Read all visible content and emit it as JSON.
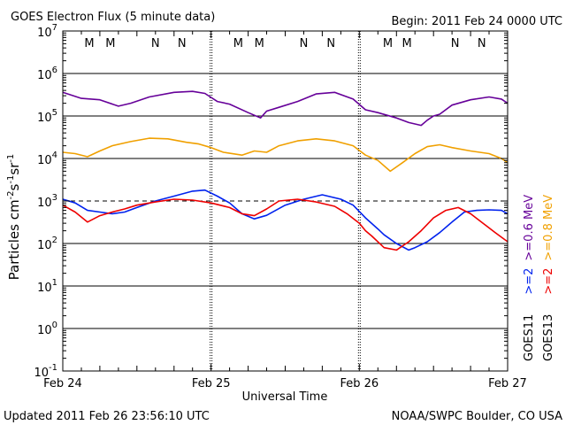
{
  "header": {
    "title": "GOES Electron Flux (5 minute data)",
    "begin": "Begin: 2011 Feb 24 0000 UTC"
  },
  "footer": {
    "updated": "Updated 2011 Feb 26 23:56:10 UTC",
    "credit": "NOAA/SWPC Boulder, CO USA"
  },
  "colors": {
    "purple": "#660099",
    "orange": "#f0a000",
    "blue": "#0022ee",
    "red": "#ee0000",
    "threshold": "#000000"
  },
  "right_labels": {
    "sat1": "GOES11",
    "sat1_ch1": ">=2",
    "sat1_ch2": ">=0.6 MeV",
    "sat2": "GOES13",
    "sat2_ch1": ">=2",
    "sat2_ch2": ">=0.8 MeV"
  },
  "chart_data": {
    "type": "line",
    "title": "GOES Electron Flux (5 minute data)",
    "xlabel": "Universal Time",
    "ylabel": "Particles cm-2s-1sr-1",
    "yscale": "log",
    "ylim": [
      0.1,
      10000000
    ],
    "xlim": [
      0,
      72
    ],
    "x_unit": "hours since 2011 Feb 24 0000 UTC",
    "x_ticks": [
      {
        "x": 0,
        "label": "Feb 24"
      },
      {
        "x": 24,
        "label": "Feb 25"
      },
      {
        "x": 48,
        "label": "Feb 26"
      },
      {
        "x": 72,
        "label": "Feb 27"
      }
    ],
    "y_ticks": [
      {
        "value": 0.1,
        "base": "10",
        "exp": "-1"
      },
      {
        "value": 1,
        "base": "10",
        "exp": "0"
      },
      {
        "value": 10,
        "base": "10",
        "exp": "1"
      },
      {
        "value": 100,
        "base": "10",
        "exp": "2"
      },
      {
        "value": 1000,
        "base": "10",
        "exp": "3"
      },
      {
        "value": 10000,
        "base": "10",
        "exp": "4"
      },
      {
        "value": 100000,
        "base": "10",
        "exp": "5"
      },
      {
        "value": 1000000,
        "base": "10",
        "exp": "6"
      },
      {
        "value": 10000000,
        "base": "10",
        "exp": "7"
      }
    ],
    "threshold": {
      "value": 1000,
      "style": "dashed"
    },
    "markers": [
      {
        "x": 4.3,
        "label": "M",
        "color": "red"
      },
      {
        "x": 7.7,
        "label": "M",
        "color": "blue"
      },
      {
        "x": 15.0,
        "label": "N",
        "color": "red"
      },
      {
        "x": 19.3,
        "label": "N",
        "color": "blue"
      },
      {
        "x": 28.4,
        "label": "M",
        "color": "red"
      },
      {
        "x": 31.8,
        "label": "M",
        "color": "blue"
      },
      {
        "x": 39.0,
        "label": "N",
        "color": "red"
      },
      {
        "x": 43.4,
        "label": "N",
        "color": "blue"
      },
      {
        "x": 52.6,
        "label": "M",
        "color": "red"
      },
      {
        "x": 55.7,
        "label": "M",
        "color": "blue"
      },
      {
        "x": 63.5,
        "label": "N",
        "color": "red"
      },
      {
        "x": 67.8,
        "label": "N",
        "color": "blue"
      }
    ],
    "series": [
      {
        "name": "GOES11 >=0.6 MeV",
        "color": "purple",
        "x": [
          0,
          3,
          6,
          9,
          11,
          14,
          18,
          21,
          23,
          25,
          27,
          30,
          32,
          33,
          35,
          38,
          41,
          44,
          47,
          49,
          51,
          54,
          56,
          58,
          59,
          60,
          61,
          63,
          66,
          69,
          71,
          72
        ],
        "values": [
          360000,
          260000,
          240000,
          170000,
          200000,
          280000,
          360000,
          380000,
          340000,
          220000,
          190000,
          120000,
          90000,
          130000,
          160000,
          220000,
          330000,
          360000,
          250000,
          140000,
          120000,
          90000,
          70000,
          60000,
          80000,
          100000,
          110000,
          180000,
          240000,
          280000,
          250000,
          200000
        ]
      },
      {
        "name": "GOES13 >=0.8 MeV",
        "color": "orange",
        "x": [
          0,
          2,
          4,
          6,
          8,
          11,
          14,
          17,
          20,
          22,
          24,
          26,
          29,
          31,
          33,
          35,
          38,
          41,
          44,
          47,
          49,
          51,
          53,
          55,
          57,
          59,
          61,
          63,
          66,
          69,
          71,
          72
        ],
        "values": [
          14000,
          13000,
          11000,
          15000,
          20000,
          25000,
          30000,
          29000,
          24000,
          22000,
          18000,
          14000,
          12000,
          15000,
          14000,
          20000,
          26000,
          29000,
          26000,
          20000,
          12000,
          9000,
          5000,
          8000,
          13000,
          19000,
          21000,
          18000,
          15000,
          13000,
          10000,
          8000
        ]
      },
      {
        "name": "GOES11 >=2 MeV",
        "color": "blue",
        "x": [
          0,
          2,
          4,
          6,
          8,
          10,
          12,
          15,
          18,
          21,
          23,
          25,
          27,
          29,
          31,
          33,
          36,
          39,
          42,
          45,
          47,
          49,
          51,
          52,
          54,
          56,
          57,
          59,
          61,
          63,
          65,
          67,
          69,
          71,
          72
        ],
        "values": [
          1100,
          900,
          600,
          550,
          500,
          550,
          700,
          1000,
          1300,
          1700,
          1800,
          1300,
          900,
          500,
          380,
          460,
          800,
          1100,
          1400,
          1100,
          800,
          400,
          220,
          160,
          100,
          70,
          80,
          110,
          180,
          320,
          550,
          600,
          620,
          600,
          500
        ]
      },
      {
        "name": "GOES13 >=2 MeV",
        "color": "red",
        "x": [
          0,
          2,
          4,
          6,
          8,
          10,
          12,
          15,
          18,
          21,
          24,
          27,
          29,
          31,
          33,
          35,
          38,
          41,
          44,
          46,
          48,
          49,
          50,
          52,
          54,
          56,
          58,
          60,
          62,
          64,
          66,
          68,
          70,
          72
        ],
        "values": [
          800,
          550,
          320,
          450,
          550,
          650,
          800,
          950,
          1100,
          1050,
          900,
          700,
          500,
          450,
          650,
          1000,
          1100,
          950,
          750,
          500,
          300,
          200,
          150,
          80,
          70,
          110,
          200,
          400,
          600,
          700,
          500,
          300,
          180,
          110
        ]
      }
    ]
  }
}
